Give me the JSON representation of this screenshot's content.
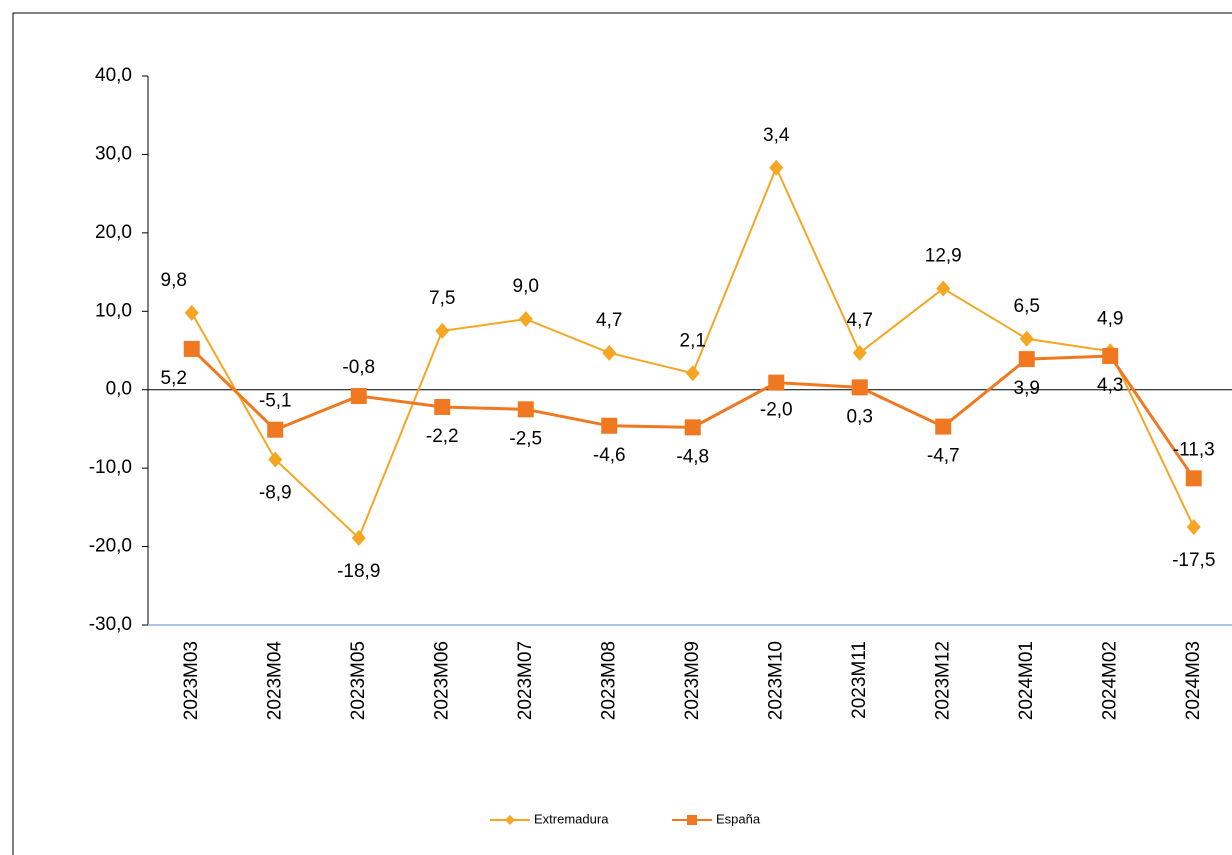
{
  "chart_data": {
    "type": "line",
    "categories": [
      "2023M03",
      "2023M04",
      "2023M05",
      "2023M06",
      "2023M07",
      "2023M08",
      "2023M09",
      "2023M10",
      "2023M11",
      "2023M12",
      "2024M01",
      "2024M02",
      "2024M03"
    ],
    "series": [
      {
        "name": "Extremadura",
        "color": "#f5a623",
        "marker": "diamond",
        "values": [
          9.8,
          -8.9,
          -18.9,
          7.5,
          9.0,
          4.7,
          2.1,
          28.3,
          4.7,
          12.9,
          6.5,
          4.9,
          -17.5
        ],
        "value_labels": [
          "9,8",
          "-8,9",
          "-18,9",
          "7,5",
          "9,0",
          "4,7",
          "2,1",
          null,
          "4,7",
          "12,9",
          "6,5",
          "4,9",
          "-17,5"
        ]
      },
      {
        "name": "España",
        "color": "#f07820",
        "marker": "square",
        "values": [
          5.2,
          -5.1,
          -0.8,
          -2.2,
          -2.5,
          -4.6,
          -4.8,
          0.9,
          0.3,
          -4.7,
          3.9,
          4.3,
          -11.3
        ],
        "value_labels": [
          "5,2",
          "-5,1",
          "-0,8",
          "-2,2",
          "-2,5",
          "-4,6",
          "-4,8",
          null,
          "0,3",
          "-4,7",
          "3,9",
          "4,3",
          "-11,3"
        ]
      }
    ],
    "annotations": [
      "3,4",
      "-2,0"
    ],
    "ylim": [
      -30,
      40
    ],
    "yticks": [
      {
        "value": -30,
        "label": "-30,0"
      },
      {
        "value": -20,
        "label": "-20,0"
      },
      {
        "value": -10,
        "label": "-10,0"
      },
      {
        "value": 0,
        "label": "0,0"
      },
      {
        "value": 10,
        "label": "10,0"
      },
      {
        "value": 20,
        "label": "20,0"
      },
      {
        "value": 30,
        "label": "30,0"
      },
      {
        "value": 40,
        "label": "40,0"
      }
    ],
    "legend": "bottom"
  }
}
